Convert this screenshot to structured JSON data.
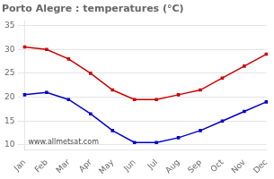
{
  "chart_data": {
    "type": "line",
    "title": "Porto Alegre : temperatures (°C)",
    "categories": [
      "Jan",
      "Feb",
      "Mar",
      "Apr",
      "May",
      "Jun",
      "Jul",
      "Aug",
      "Sep",
      "Oct",
      "Nov",
      "Dec"
    ],
    "series": [
      {
        "color": "#cc0000",
        "values": [
          30.5,
          30.0,
          28.0,
          25.0,
          21.5,
          19.5,
          19.5,
          20.5,
          21.5,
          24.0,
          26.5,
          29.0
        ]
      },
      {
        "color": "#0000cc",
        "values": [
          20.5,
          21.0,
          19.5,
          16.5,
          13.0,
          10.5,
          10.5,
          11.5,
          13.0,
          15.0,
          17.0,
          19.0
        ]
      }
    ],
    "ylim": [
      9,
      36
    ],
    "yticks": [
      10,
      15,
      20,
      25,
      30,
      35
    ],
    "grid": "y",
    "marker": "square",
    "annotations": [
      "www.allmetsat.com"
    ]
  }
}
